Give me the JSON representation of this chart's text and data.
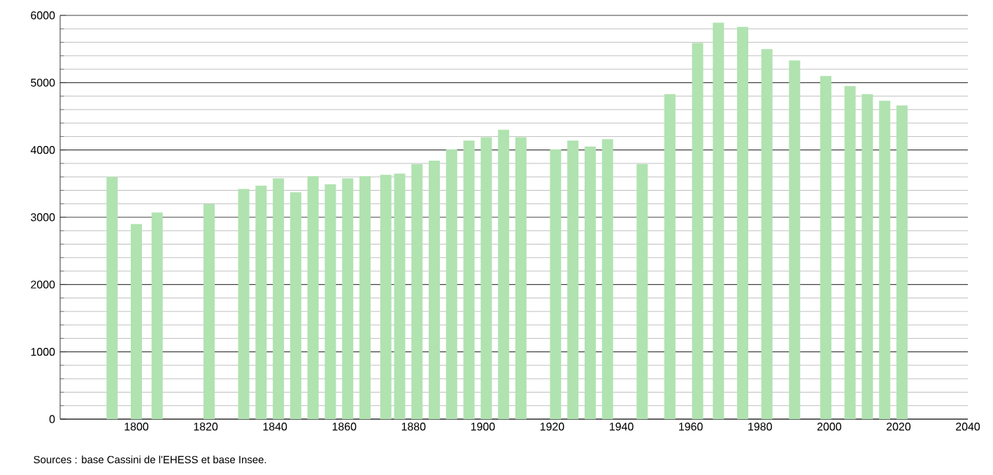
{
  "chart_data": {
    "type": "bar",
    "x": [
      1793,
      1800,
      1806,
      1821,
      1831,
      1836,
      1841,
      1846,
      1851,
      1856,
      1861,
      1866,
      1872,
      1876,
      1881,
      1886,
      1891,
      1896,
      1901,
      1906,
      1911,
      1921,
      1926,
      1931,
      1936,
      1946,
      1954,
      1962,
      1968,
      1975,
      1982,
      1990,
      1999,
      2006,
      2011,
      2016,
      2021
    ],
    "values": [
      3600,
      2900,
      3070,
      3200,
      3420,
      3470,
      3580,
      3370,
      3610,
      3490,
      3580,
      3610,
      3630,
      3650,
      3790,
      3840,
      4010,
      4140,
      4190,
      4300,
      4190,
      4010,
      4140,
      4050,
      4160,
      3790,
      4830,
      5590,
      5890,
      5830,
      5500,
      5330,
      5100,
      4950,
      4830,
      4730,
      4660
    ],
    "color": "#b0e3b0",
    "xlim": [
      1778,
      2040
    ],
    "xticks": [
      1800,
      1820,
      1840,
      1860,
      1880,
      1900,
      1920,
      1940,
      1960,
      1980,
      2000,
      2020,
      2040
    ],
    "ylim": [
      0,
      6000
    ],
    "yticks": [
      0,
      1000,
      2000,
      3000,
      4000,
      5000,
      6000
    ],
    "grid": "y",
    "annotations": [
      "Sources : base Cassini de l'EHESS et base Insee."
    ]
  }
}
